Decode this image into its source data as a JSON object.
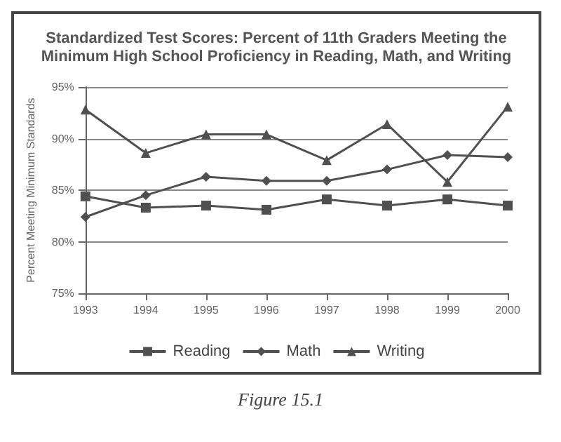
{
  "chart_data": {
    "type": "line",
    "title": "Standardized Test Scores: Percent of 11th Graders Meeting the\nMinimum High School Proficiency in Reading, Math, and Writing",
    "ylabel": "Percent Meeting Minimum Standards",
    "categories": [
      "1993",
      "1994",
      "1995",
      "1996",
      "1997",
      "1998",
      "1999",
      "2000"
    ],
    "series": [
      {
        "name": "Reading",
        "color": "#505050",
        "marker": "square",
        "values": [
          84.4,
          83.3,
          83.5,
          83.1,
          84.1,
          83.5,
          84.1,
          83.5
        ]
      },
      {
        "name": "Math",
        "color": "#505050",
        "marker": "diamond",
        "values": [
          82.4,
          84.5,
          86.3,
          85.9,
          85.9,
          87.0,
          88.4,
          88.2
        ]
      },
      {
        "name": "Writing",
        "color": "#505050",
        "marker": "triangle",
        "values": [
          92.8,
          88.6,
          90.4,
          90.4,
          87.9,
          91.4,
          85.8,
          93.1
        ]
      }
    ],
    "ylim": [
      75,
      95
    ],
    "yticks": [
      {
        "value": 75,
        "label": "75%"
      },
      {
        "value": 80,
        "label": "80%"
      },
      {
        "value": 85,
        "label": "85%"
      },
      {
        "value": 90,
        "label": "90%"
      },
      {
        "value": 95,
        "label": "95%"
      }
    ],
    "grid": "y",
    "legend": "bottom",
    "line_style": "solid",
    "annotations": [
      "Figure 15.1"
    ]
  }
}
